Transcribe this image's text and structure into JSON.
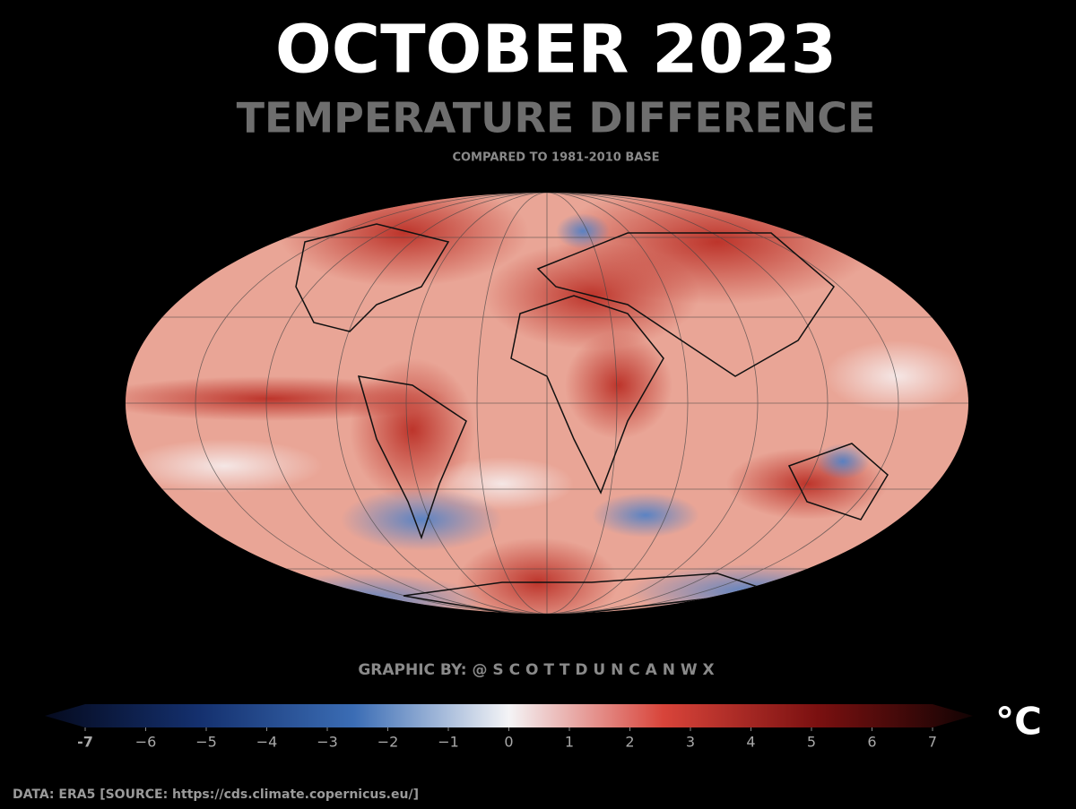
{
  "title": "OCTOBER 2023",
  "subtitle": "TEMPERATURE DIFFERENCE",
  "caption": "COMPARED TO 1981-2010 BASE",
  "credit": "GRAPHIC BY: @ S C O T T D U N C A N W X",
  "colorbar": {
    "range": [
      -7,
      7
    ],
    "colors": [
      "#050a1e",
      "#14306e",
      "#3b6db5",
      "#f4f4f6",
      "#d8443a",
      "#7a1010",
      "#120303"
    ],
    "ticks": [
      -7,
      {
        "value": -6,
        "label": "−6"
      },
      {
        "value": -5,
        "label": "−5"
      },
      {
        "value": -4,
        "label": "−4"
      },
      {
        "value": -3,
        "label": "−3"
      },
      {
        "value": -2,
        "label": "−2"
      },
      {
        "value": -1,
        "label": "−1"
      },
      0,
      1,
      2,
      3,
      4,
      5,
      6,
      7
    ],
    "unit": "°C"
  },
  "source": "DATA: ERA5 [SOURCE: https://cds.climate.copernicus.eu/]"
}
